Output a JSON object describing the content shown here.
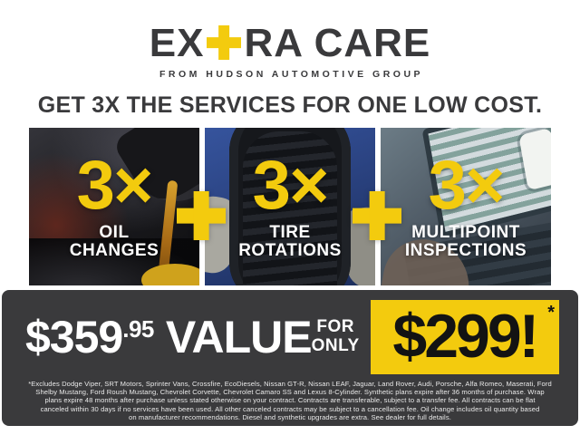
{
  "brand": {
    "logo_prefix": "EX",
    "logo_suffix": "RA CARE",
    "tagline": "FROM HUDSON AUTOMOTIVE GROUP"
  },
  "headline": "GET 3X THE SERVICES FOR ONE LOW COST.",
  "services": [
    {
      "multiplier": "3×",
      "label_line1": "OIL",
      "label_line2": "CHANGES",
      "photo": "oil-pour-photo"
    },
    {
      "multiplier": "3×",
      "label_line1": "TIRE",
      "label_line2": "ROTATIONS",
      "photo": "tire-hold-photo"
    },
    {
      "multiplier": "3×",
      "label_line1": "MULTIPOINT",
      "label_line2": "INSPECTIONS",
      "photo": "inspection-laptop-photo"
    }
  ],
  "offer": {
    "value_price_main": "$359",
    "value_price_cents": ".95",
    "value_label": "VALUE",
    "for_line1": "FOR",
    "for_line2": "ONLY",
    "sale_price": "$299!",
    "sale_asterisk": "*"
  },
  "colors": {
    "accent_yellow": "#F3CB0E",
    "charcoal": "#3A3A3C",
    "white": "#FFFFFF"
  },
  "disclaimer": {
    "lines": [
      "*Excludes Dodge Viper, SRT Motors, Sprinter Vans, Crossfire, EcoDiesels, Nissan GT-R, Nissan LEAF, Jaguar, Land Rover, Audi, Porsche, Alfa Romeo, Maserati, Ford",
      "Shelby Mustang, Ford Roush Mustang, Chevrolet Corvette, Chevrolet Camaro SS and Lexus 8-Cylinder. Synthetic plans expire after 36 months of purchase. Wrap",
      "plans expire 48 months after purchase unless stated otherwise on your contract. Contracts are transferable, subject to a transfer fee. All contracts can be flat",
      "canceled within 30 days if no services have been used. All other canceled contracts may be subject to a cancellation fee. Oil change includes oil quantity based",
      "on manufacturer recommendations. Diesel and synthetic upgrades are extra. See dealer for full details."
    ]
  }
}
